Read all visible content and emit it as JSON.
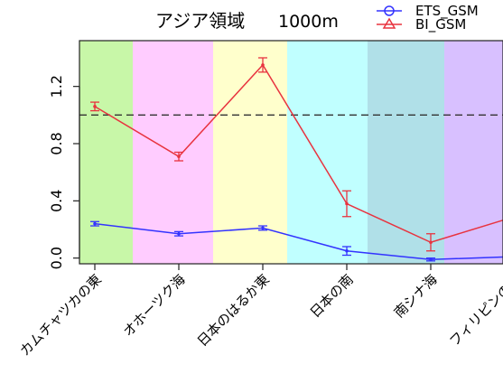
{
  "chart_data": {
    "type": "line",
    "title": "アジア領域",
    "subtitle": "1000m",
    "xlabel": "",
    "ylabel": "",
    "categories": [
      "カムチャツカの東",
      "オホーツク海",
      "日本のはるか東",
      "日本の南",
      "南シナ海",
      "フィリピンの東"
    ],
    "yticks": [
      "0.0",
      "0.4",
      "0.8",
      "1.2"
    ],
    "ylim": [
      -0.04,
      1.52
    ],
    "reference_line": {
      "y": 1.0,
      "style": "dashed",
      "color": "#333333"
    },
    "region_colors": [
      "#c8f7a8",
      "#ffccff",
      "#ffffcc",
      "#c0ffff",
      "#b0e0e8",
      "#d8c0ff"
    ],
    "grid": false,
    "legend_position": "top-right",
    "series": [
      {
        "name": "ETS_GSM",
        "color": "#3333ff",
        "marker": "circle",
        "values": [
          0.24,
          0.17,
          0.21,
          0.05,
          -0.01,
          0.01
        ],
        "errors": [
          0.015,
          0.015,
          0.015,
          0.03,
          0.01,
          0.01
        ]
      },
      {
        "name": "BI_GSM",
        "color": "#e8333f",
        "marker": "triangle",
        "values": [
          1.06,
          0.71,
          1.35,
          0.38,
          0.11,
          0.29
        ],
        "errors": [
          0.03,
          0.03,
          0.05,
          0.09,
          0.06,
          0.04
        ]
      }
    ]
  }
}
